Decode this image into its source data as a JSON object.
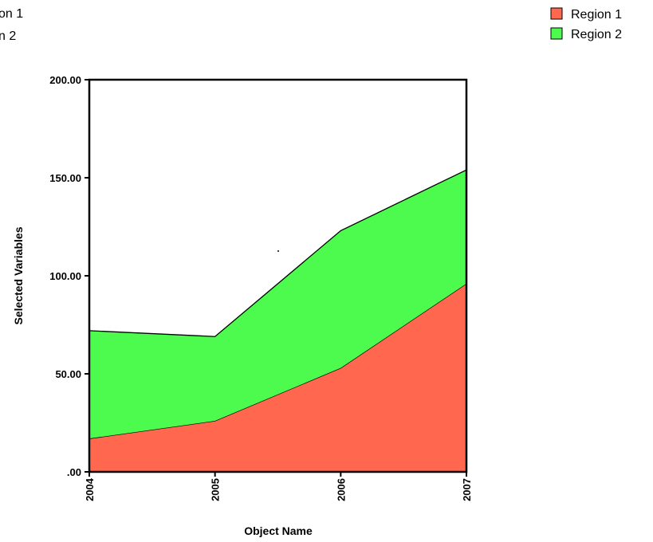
{
  "chart_data": {
    "type": "area",
    "stacked": true,
    "x": [
      "2004",
      "2005",
      "2006",
      "2007"
    ],
    "series": [
      {
        "name": "Region 1",
        "values": [
          17,
          26,
          53,
          96
        ],
        "color": "#ff684f"
      },
      {
        "name": "Region 2",
        "values": [
          55,
          43,
          70,
          58
        ],
        "color": "#4dfb4f"
      }
    ],
    "xlabel": "Object Name",
    "ylabel": "Selected Variables",
    "ylim": [
      0,
      200
    ],
    "yticks": [
      0,
      50,
      100,
      150,
      200
    ],
    "ytick_labels": [
      ".00",
      "50.00",
      "100.00",
      "150.00",
      "200.00"
    ],
    "grid": false,
    "legend_position": "top-right"
  },
  "legend_clipped": {
    "items": [
      "on 1",
      "n 2"
    ]
  }
}
